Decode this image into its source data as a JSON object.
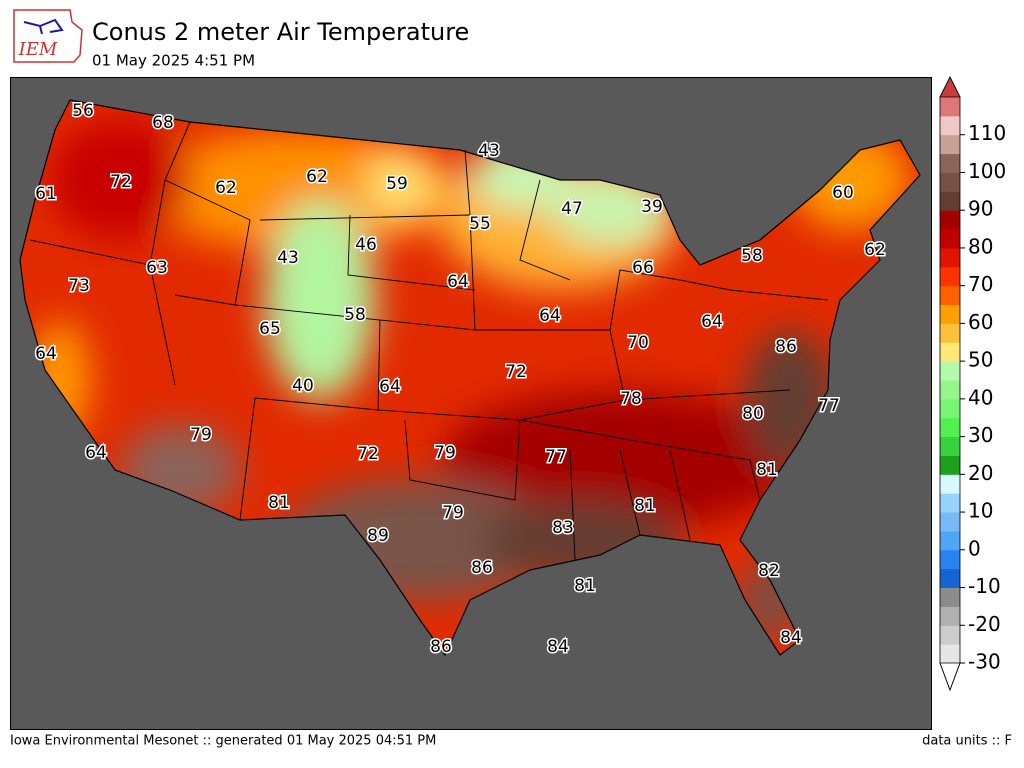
{
  "header": {
    "title": "Conus 2 meter Air Temperature",
    "subtitle": "01 May 2025 4:51 PM",
    "logo": "IEM"
  },
  "map": {
    "station_values": [
      56,
      68,
      72,
      61,
      62,
      62,
      59,
      43,
      47,
      39,
      60,
      55,
      46,
      43,
      63,
      73,
      64,
      66,
      58,
      62,
      58,
      65,
      64,
      64,
      70,
      86,
      64,
      72,
      40,
      64,
      78,
      80,
      77,
      79,
      79,
      72,
      77,
      64,
      81,
      81,
      79,
      81,
      83,
      89,
      86,
      82,
      81,
      86,
      84,
      84
    ]
  },
  "colorbar": {
    "range": [
      -30,
      120
    ],
    "step": 5,
    "colors": [
      "#e6e6e6",
      "#cdcdcd",
      "#b0b0b0",
      "#8c8c8c",
      "#1464d2",
      "#2882f0",
      "#50a5f5",
      "#78b9fa",
      "#96d2fa",
      "#d8f8ff",
      "#1ea01e",
      "#37d23c",
      "#50f050",
      "#78f573",
      "#96f58c",
      "#b4faaa",
      "#ffe878",
      "#ffc03c",
      "#ffa000",
      "#ff6000",
      "#ff3200",
      "#e11400",
      "#c00000",
      "#a50000",
      "#643c32",
      "#785046",
      "#8c645a",
      "#c8a096",
      "#f0c8c8",
      "#dc7878"
    ],
    "top_arrow_color": "#c83c3c",
    "bottom_arrow_color": "#ffffff",
    "ticks": [
      -30,
      -20,
      -10,
      0,
      10,
      20,
      30,
      40,
      50,
      60,
      70,
      80,
      90,
      100,
      110
    ]
  },
  "footer": {
    "left": "Iowa Environmental Mesonet :: generated 01 May 2025 04:51 PM",
    "right": "data units :: F"
  }
}
